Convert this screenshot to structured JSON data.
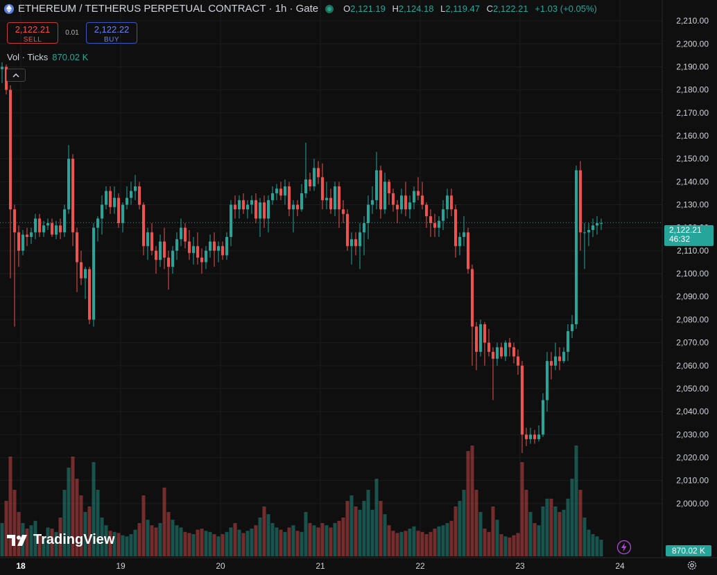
{
  "header": {
    "title": "ETHEREUM / TETHERUS PERPETUAL CONTRACT · 1h · Gate",
    "ohlc": {
      "o_key": "O",
      "o": "2,121.19",
      "h_key": "H",
      "h": "2,124.18",
      "l_key": "L",
      "l": "2,119.47",
      "c_key": "C",
      "c": "2,122.21",
      "change": "+1.03 (+0.05%)"
    }
  },
  "trade": {
    "sell_price": "2,122.21",
    "sell_label": "SELL",
    "spread": "0.01",
    "buy_price": "2,122.22",
    "buy_label": "BUY"
  },
  "volume_legend": {
    "label": "Vol · Ticks",
    "value": "870.02 K"
  },
  "badges": {
    "last_price": "2,122.21",
    "countdown": "46:32",
    "volume": "870.02 K"
  },
  "logo": {
    "text": "TradingView"
  },
  "colors": {
    "up": "#26a69a",
    "down": "#ef5350",
    "background": "#0f0f0f",
    "grid": "#1c1c1c"
  },
  "icons": [
    "ethereum-icon",
    "live-status-icon",
    "chevron-up-icon",
    "tradingview-logo-icon",
    "lightning-icon",
    "gear-icon"
  ],
  "chart_data": {
    "type": "candlestick",
    "title": "",
    "xlabel": "",
    "ylabel": "",
    "ylim": [
      1990,
      2212
    ],
    "y_ticks": [
      "2,000.00",
      "2,010.00",
      "2,020.00",
      "2,030.00",
      "2,040.00",
      "2,050.00",
      "2,060.00",
      "2,070.00",
      "2,080.00",
      "2,090.00",
      "2,100.00",
      "2,110.00",
      "2,120.00",
      "2,130.00",
      "2,140.00",
      "2,150.00",
      "2,160.00",
      "2,170.00",
      "2,180.00",
      "2,190.00",
      "2,200.00",
      "2,210.00"
    ],
    "x_ticks": [
      {
        "label": "18",
        "index": 2
      },
      {
        "label": "19",
        "index": 26
      },
      {
        "label": "20",
        "index": 50
      },
      {
        "label": "21",
        "index": 74
      },
      {
        "label": "22",
        "index": 98
      },
      {
        "label": "23",
        "index": 122
      },
      {
        "label": "24",
        "index": 146
      }
    ],
    "grid": true,
    "last_price": 2122.21,
    "volume_max": 1000,
    "candles": [
      [
        2189,
        2192,
        2183,
        2190,
        300
      ],
      [
        2190,
        2191,
        2178,
        2180,
        500
      ],
      [
        2180,
        2182,
        2098,
        2128,
        900
      ],
      [
        2128,
        2130,
        2077,
        2118,
        600
      ],
      [
        2118,
        2121,
        2103,
        2110,
        400
      ],
      [
        2110,
        2119,
        2108,
        2117,
        300
      ],
      [
        2117,
        2120,
        2112,
        2116,
        250
      ],
      [
        2116,
        2120,
        2113,
        2118,
        280
      ],
      [
        2118,
        2126,
        2115,
        2124,
        320
      ],
      [
        2124,
        2126,
        2116,
        2118,
        200
      ],
      [
        2118,
        2123,
        2116,
        2121,
        180
      ],
      [
        2121,
        2124,
        2119,
        2122,
        260
      ],
      [
        2122,
        2124,
        2116,
        2117,
        250
      ],
      [
        2117,
        2123,
        2115,
        2121,
        220
      ],
      [
        2121,
        2124,
        2115,
        2118,
        350
      ],
      [
        2118,
        2130,
        2116,
        2128,
        600
      ],
      [
        2128,
        2156,
        2126,
        2150,
        800
      ],
      [
        2150,
        2152,
        2112,
        2118,
        900
      ],
      [
        2118,
        2120,
        2092,
        2105,
        700
      ],
      [
        2105,
        2110,
        2095,
        2098,
        550
      ],
      [
        2098,
        2103,
        2089,
        2102,
        400
      ],
      [
        2102,
        2103,
        2078,
        2080,
        450
      ],
      [
        2080,
        2122,
        2077,
        2120,
        850
      ],
      [
        2120,
        2125,
        2114,
        2124,
        600
      ],
      [
        2124,
        2134,
        2117,
        2130,
        350
      ],
      [
        2130,
        2138,
        2128,
        2136,
        280
      ],
      [
        2136,
        2138,
        2126,
        2129,
        230
      ],
      [
        2129,
        2138,
        2126,
        2133,
        220
      ],
      [
        2133,
        2135,
        2120,
        2122,
        210
      ],
      [
        2122,
        2131,
        2118,
        2130,
        190
      ],
      [
        2130,
        2138,
        2128,
        2133,
        180
      ],
      [
        2133,
        2140,
        2130,
        2136,
        200
      ],
      [
        2136,
        2143,
        2132,
        2138,
        240
      ],
      [
        2138,
        2140,
        2128,
        2130,
        300
      ],
      [
        2130,
        2131,
        2108,
        2112,
        550
      ],
      [
        2112,
        2120,
        2106,
        2118,
        330
      ],
      [
        2118,
        2122,
        2108,
        2110,
        280
      ],
      [
        2110,
        2112,
        2100,
        2106,
        260
      ],
      [
        2106,
        2117,
        2103,
        2114,
        300
      ],
      [
        2114,
        2120,
        2102,
        2107,
        620
      ],
      [
        2107,
        2110,
        2093,
        2103,
        400
      ],
      [
        2103,
        2112,
        2100,
        2110,
        330
      ],
      [
        2110,
        2118,
        2106,
        2115,
        280
      ],
      [
        2115,
        2124,
        2112,
        2120,
        260
      ],
      [
        2120,
        2122,
        2111,
        2114,
        220
      ],
      [
        2114,
        2119,
        2106,
        2109,
        210
      ],
      [
        2109,
        2116,
        2104,
        2112,
        200
      ],
      [
        2112,
        2118,
        2104,
        2107,
        240
      ],
      [
        2107,
        2111,
        2100,
        2105,
        250
      ],
      [
        2105,
        2112,
        2102,
        2110,
        230
      ],
      [
        2110,
        2117,
        2107,
        2114,
        220
      ],
      [
        2114,
        2118,
        2103,
        2110,
        200
      ],
      [
        2110,
        2114,
        2105,
        2112,
        180
      ],
      [
        2112,
        2114,
        2106,
        2108,
        200
      ],
      [
        2108,
        2118,
        2106,
        2116,
        220
      ],
      [
        2116,
        2132,
        2112,
        2130,
        260
      ],
      [
        2130,
        2134,
        2124,
        2128,
        300
      ],
      [
        2128,
        2134,
        2124,
        2132,
        240
      ],
      [
        2132,
        2135,
        2126,
        2128,
        210
      ],
      [
        2128,
        2132,
        2124,
        2130,
        230
      ],
      [
        2130,
        2134,
        2126,
        2132,
        250
      ],
      [
        2132,
        2135,
        2122,
        2124,
        280
      ],
      [
        2124,
        2133,
        2116,
        2131,
        350
      ],
      [
        2131,
        2134,
        2120,
        2124,
        450
      ],
      [
        2124,
        2134,
        2118,
        2132,
        380
      ],
      [
        2132,
        2138,
        2130,
        2135,
        300
      ],
      [
        2135,
        2139,
        2132,
        2137,
        260
      ],
      [
        2137,
        2140,
        2132,
        2134,
        240
      ],
      [
        2134,
        2141,
        2130,
        2138,
        220
      ],
      [
        2138,
        2140,
        2125,
        2128,
        260
      ],
      [
        2128,
        2132,
        2118,
        2130,
        280
      ],
      [
        2130,
        2132,
        2125,
        2128,
        230
      ],
      [
        2128,
        2139,
        2127,
        2135,
        220
      ],
      [
        2135,
        2157,
        2133,
        2141,
        400
      ],
      [
        2141,
        2144,
        2136,
        2138,
        300
      ],
      [
        2138,
        2150,
        2136,
        2146,
        280
      ],
      [
        2146,
        2149,
        2139,
        2142,
        260
      ],
      [
        2142,
        2148,
        2128,
        2132,
        300
      ],
      [
        2132,
        2140,
        2128,
        2133,
        280
      ],
      [
        2133,
        2137,
        2126,
        2128,
        260
      ],
      [
        2128,
        2140,
        2125,
        2138,
        300
      ],
      [
        2138,
        2140,
        2120,
        2128,
        320
      ],
      [
        2128,
        2132,
        2122,
        2126,
        350
      ],
      [
        2126,
        2128,
        2110,
        2112,
        500
      ],
      [
        2112,
        2118,
        2104,
        2115,
        550
      ],
      [
        2115,
        2118,
        2108,
        2112,
        450
      ],
      [
        2112,
        2122,
        2102,
        2118,
        420
      ],
      [
        2118,
        2125,
        2108,
        2122,
        500
      ],
      [
        2122,
        2134,
        2115,
        2130,
        600
      ],
      [
        2130,
        2138,
        2126,
        2132,
        420
      ],
      [
        2132,
        2153,
        2128,
        2145,
        700
      ],
      [
        2145,
        2147,
        2124,
        2128,
        500
      ],
      [
        2128,
        2144,
        2126,
        2140,
        380
      ],
      [
        2140,
        2141,
        2130,
        2135,
        280
      ],
      [
        2135,
        2137,
        2127,
        2130,
        230
      ],
      [
        2130,
        2132,
        2122,
        2128,
        210
      ],
      [
        2128,
        2137,
        2126,
        2134,
        220
      ],
      [
        2134,
        2140,
        2125,
        2128,
        230
      ],
      [
        2128,
        2134,
        2124,
        2131,
        250
      ],
      [
        2131,
        2138,
        2128,
        2136,
        270
      ],
      [
        2136,
        2142,
        2132,
        2134,
        230
      ],
      [
        2134,
        2140,
        2128,
        2130,
        220
      ],
      [
        2130,
        2131,
        2120,
        2125,
        200
      ],
      [
        2125,
        2128,
        2116,
        2122,
        220
      ],
      [
        2122,
        2126,
        2116,
        2120,
        250
      ],
      [
        2120,
        2125,
        2116,
        2123,
        270
      ],
      [
        2123,
        2132,
        2119,
        2128,
        280
      ],
      [
        2128,
        2137,
        2124,
        2134,
        300
      ],
      [
        2134,
        2137,
        2125,
        2128,
        320
      ],
      [
        2128,
        2130,
        2107,
        2112,
        450
      ],
      [
        2112,
        2118,
        2108,
        2116,
        500
      ],
      [
        2116,
        2125,
        2112,
        2118,
        600
      ],
      [
        2118,
        2120,
        2100,
        2102,
        950
      ],
      [
        2102,
        2104,
        2060,
        2077,
        1000
      ],
      [
        2077,
        2079,
        2058,
        2066,
        600
      ],
      [
        2066,
        2080,
        2064,
        2078,
        400
      ],
      [
        2078,
        2079,
        2060,
        2070,
        250
      ],
      [
        2070,
        2076,
        2064,
        2066,
        220
      ],
      [
        2066,
        2068,
        2045,
        2063,
        450
      ],
      [
        2063,
        2070,
        2060,
        2068,
        330
      ],
      [
        2068,
        2070,
        2063,
        2064,
        200
      ],
      [
        2064,
        2071,
        2062,
        2070,
        180
      ],
      [
        2070,
        2072,
        2064,
        2068,
        170
      ],
      [
        2068,
        2070,
        2061,
        2064,
        190
      ],
      [
        2064,
        2067,
        2056,
        2060,
        210
      ],
      [
        2060,
        2062,
        2022,
        2030,
        850
      ],
      [
        2030,
        2033,
        2025,
        2028,
        600
      ],
      [
        2028,
        2033,
        2026,
        2030,
        400
      ],
      [
        2030,
        2032,
        2026,
        2028,
        300
      ],
      [
        2028,
        2034,
        2027,
        2030,
        280
      ],
      [
        2030,
        2048,
        2029,
        2045,
        450
      ],
      [
        2045,
        2066,
        2040,
        2062,
        520
      ],
      [
        2062,
        2066,
        2054,
        2060,
        520
      ],
      [
        2060,
        2070,
        2058,
        2064,
        450
      ],
      [
        2064,
        2068,
        2058,
        2062,
        400
      ],
      [
        2062,
        2068,
        2061,
        2066,
        420
      ],
      [
        2066,
        2078,
        2062,
        2075,
        520
      ],
      [
        2075,
        2082,
        2072,
        2078,
        700
      ],
      [
        2078,
        2147,
        2076,
        2145,
        1000
      ],
      [
        2145,
        2149,
        2110,
        2118,
        600
      ],
      [
        2118,
        2122,
        2102,
        2118,
        350
      ],
      [
        2118,
        2122,
        2112,
        2119,
        240
      ],
      [
        2119,
        2124,
        2116,
        2121,
        200
      ],
      [
        2121,
        2125,
        2117,
        2122,
        180
      ],
      [
        2122,
        2124,
        2119,
        2122,
        150
      ]
    ]
  }
}
